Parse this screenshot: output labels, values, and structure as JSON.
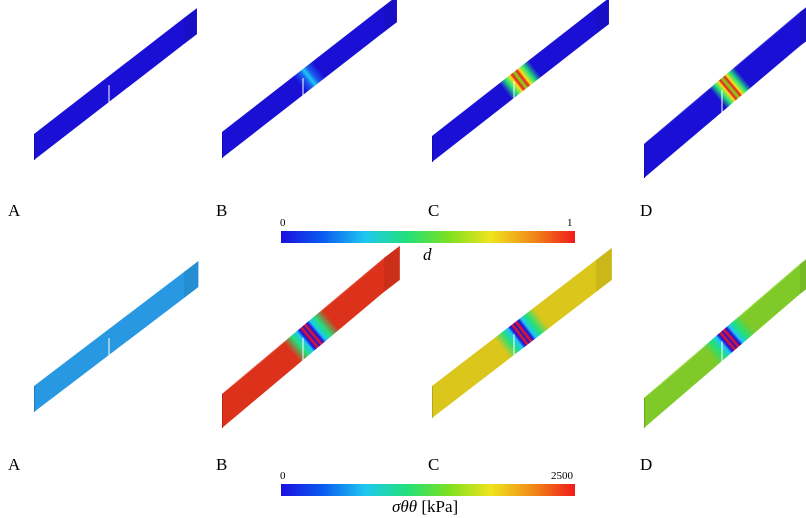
{
  "colormap": [
    "#1a10e0",
    "#0a5bf0",
    "#1ec8f0",
    "#22e07a",
    "#7ee020",
    "#f0e41e",
    "#f08a18",
    "#f01a1a"
  ],
  "rows": [
    {
      "variable": "d",
      "title": "d",
      "unit": "",
      "colorbar": {
        "min_label": "0",
        "max_label": "1"
      },
      "panels": [
        {
          "label": "A",
          "base_color": "#1a10e0",
          "damage": "none"
        },
        {
          "label": "B",
          "base_color": "#1a10e0",
          "damage": "onset"
        },
        {
          "label": "C",
          "base_color": "#1a10e0",
          "damage": "developed"
        },
        {
          "label": "D",
          "base_color": "#1a10e0",
          "damage": "localized"
        }
      ]
    },
    {
      "variable": "sigma_theta_theta",
      "title": "σθθ",
      "unit": "[kPa]",
      "colorbar": {
        "min_label": "0",
        "max_label": "2500"
      },
      "panels": [
        {
          "label": "A",
          "base_color": "#2aa0ee",
          "damage": "none"
        },
        {
          "label": "B",
          "base_color": "#e8351c",
          "damage": "banded"
        },
        {
          "label": "C",
          "base_color": "#e6d01c",
          "damage": "banded"
        },
        {
          "label": "D",
          "base_color": "#86d42a",
          "damage": "banded"
        }
      ]
    }
  ]
}
